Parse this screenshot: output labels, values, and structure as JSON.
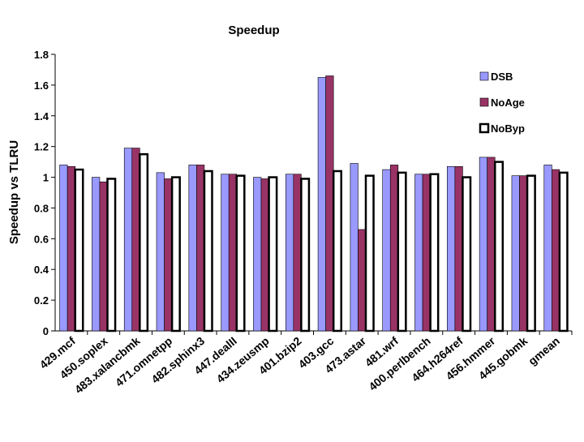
{
  "chart_data": {
    "type": "bar",
    "title": "Speedup",
    "y_label": "Speedup vs TLRU",
    "categories": [
      "429.mcf",
      "450.soplex",
      "483.xalancbmk",
      "471.omnetpp",
      "482.sphinx3",
      "447.dealII",
      "434.zeusmp",
      "401.bzip2",
      "403.gcc",
      "473.astar",
      "481.wrf",
      "400.perlbench",
      "464.h264ref",
      "456.hmmer",
      "445.gobmk",
      "gmean"
    ],
    "series": [
      {
        "name": "DSB",
        "color": "#9999ff",
        "values": [
          1.08,
          1.0,
          1.19,
          1.03,
          1.08,
          1.02,
          1.0,
          1.02,
          1.65,
          1.09,
          1.05,
          1.02,
          1.07,
          1.13,
          1.01,
          1.08
        ]
      },
      {
        "name": "NoAge",
        "color": "#993366",
        "values": [
          1.07,
          0.97,
          1.19,
          0.99,
          1.08,
          1.02,
          0.99,
          1.02,
          1.66,
          0.66,
          1.08,
          1.02,
          1.07,
          1.13,
          1.01,
          1.05
        ]
      },
      {
        "name": "NoByp",
        "color": "#ffffff",
        "values": [
          1.05,
          0.99,
          1.15,
          1.0,
          1.04,
          1.01,
          1.0,
          0.99,
          1.04,
          1.01,
          1.03,
          1.02,
          1.0,
          1.1,
          1.01,
          1.03
        ]
      }
    ],
    "ylim": [
      0,
      1.8
    ],
    "yticks": [
      0,
      0.2,
      0.4,
      0.6,
      0.8,
      1,
      1.2,
      1.4,
      1.6,
      1.8
    ],
    "grid": false,
    "legend": "upper right"
  }
}
